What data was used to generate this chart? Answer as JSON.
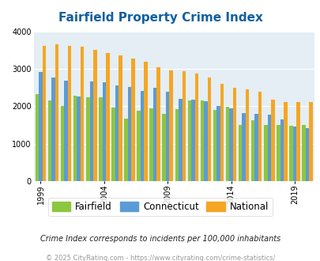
{
  "title": "Fairfield Property Crime Index",
  "title_color": "#1060a0",
  "years": [
    1999,
    2000,
    2001,
    2002,
    2003,
    2004,
    2005,
    2006,
    2007,
    2008,
    2009,
    2010,
    2011,
    2012,
    2013,
    2014,
    2015,
    2016,
    2017,
    2018,
    2019,
    2020
  ],
  "fairfield": [
    2330,
    2150,
    2020,
    2280,
    2240,
    2240,
    1960,
    1680,
    1890,
    1950,
    1800,
    1930,
    2150,
    2150,
    1910,
    1980,
    1510,
    1640,
    1500,
    1510,
    1490,
    1510
  ],
  "connecticut": [
    2920,
    2770,
    2680,
    2260,
    2670,
    2650,
    2560,
    2510,
    2420,
    2490,
    2380,
    2210,
    2180,
    2140,
    2000,
    1950,
    1820,
    1800,
    1770,
    1650,
    1470,
    1410
  ],
  "national": [
    3620,
    3660,
    3620,
    3600,
    3510,
    3430,
    3350,
    3280,
    3200,
    3040,
    2960,
    2940,
    2880,
    2760,
    2600,
    2500,
    2460,
    2380,
    2180,
    2110,
    2110,
    2110
  ],
  "fairfield_color": "#8DC63F",
  "connecticut_color": "#5B9BD5",
  "national_color": "#F5A623",
  "bg_color": "#E4EEF4",
  "ylim": [
    0,
    4000
  ],
  "yticks": [
    0,
    1000,
    2000,
    3000,
    4000
  ],
  "xtick_years": [
    1999,
    2004,
    2009,
    2014,
    2019
  ],
  "footer_note": "Crime Index corresponds to incidents per 100,000 inhabitants",
  "footer_credit": "© 2025 CityRating.com - https://www.cityrating.com/crime-statistics/",
  "legend_labels": [
    "Fairfield",
    "Connecticut",
    "National"
  ]
}
